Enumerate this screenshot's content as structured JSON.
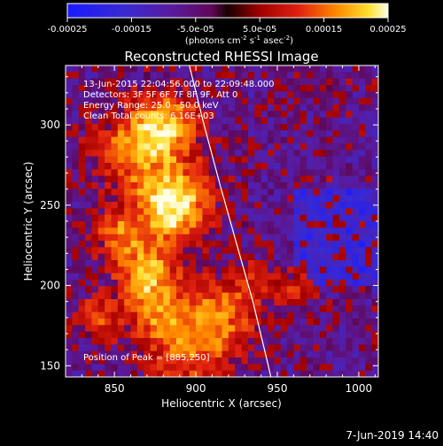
{
  "colorbar": {
    "ticks": [
      "-0.00025",
      "-0.00015",
      "-5.0e-05",
      "5.0e-05",
      "0.00015",
      "0.00025"
    ],
    "unit_parts": [
      "(photons cm",
      "-2",
      " s",
      "-1",
      " asec",
      "-2",
      ")"
    ]
  },
  "chart_data": {
    "type": "heatmap",
    "title": "Reconstructed RHESSI Image",
    "xlabel": "Heliocentric X (arcsec)",
    "ylabel": "Heliocentric Y (arcsec)",
    "xlim": [
      820,
      1012
    ],
    "ylim": [
      143,
      337
    ],
    "xticks": [
      "850",
      "900",
      "950",
      "1000"
    ],
    "yticks": [
      "300",
      "250",
      "200",
      "150"
    ],
    "info_lines": [
      "13-Jun-2015 22:04:56.000 to 22:09:48.000",
      "Detectors: 3F 5F 6F 7F 8F 9F, Att 0",
      "Energy Range: 25.0 - 50.0 keV",
      "Clean    Total counts: 6.16E+03"
    ],
    "peak_label": "Position of Peak = [885,250]",
    "colormap": "blue-purple-red-orange-yellow-white",
    "range": [
      -0.00025,
      0.00025
    ],
    "limb_curve": [
      [
        896,
        337
      ],
      [
        905,
        300
      ],
      [
        915,
        262
      ],
      [
        925,
        226
      ],
      [
        935,
        190
      ],
      [
        944,
        152
      ],
      [
        946,
        143
      ]
    ]
  },
  "timestamp": "7-Jun-2019 14:40"
}
